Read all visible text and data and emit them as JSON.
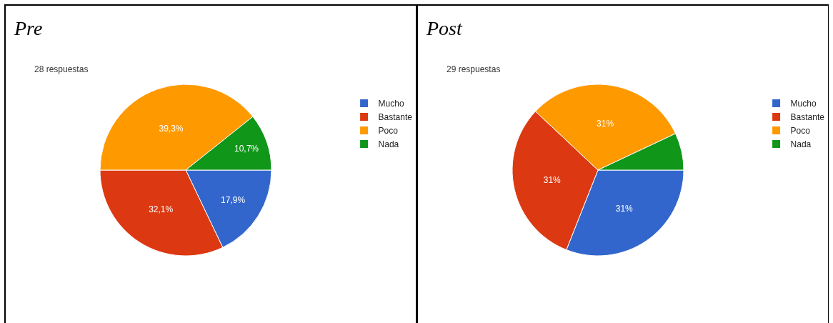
{
  "chart_data": [
    {
      "type": "pie",
      "title": "Pre",
      "subtitle": "28 respuestas",
      "categories": [
        "Mucho",
        "Bastante",
        "Poco",
        "Nada"
      ],
      "values": [
        17.9,
        32.1,
        39.3,
        10.7
      ],
      "colors": [
        "#3366cc",
        "#dc3912",
        "#ff9900",
        "#109618"
      ],
      "value_labels": [
        "17,9%",
        "32,1%",
        "39,3%",
        "10,7%"
      ],
      "legend": "top right"
    },
    {
      "type": "pie",
      "title": "Post",
      "subtitle": "29 respuestas",
      "categories": [
        "Mucho",
        "Bastante",
        "Poco",
        "Nada"
      ],
      "values": [
        31,
        31,
        31,
        7
      ],
      "colors": [
        "#3366cc",
        "#dc3912",
        "#ff9900",
        "#109618"
      ],
      "value_labels": [
        "31%",
        "31%",
        "31%",
        null
      ],
      "legend": "top right"
    }
  ]
}
